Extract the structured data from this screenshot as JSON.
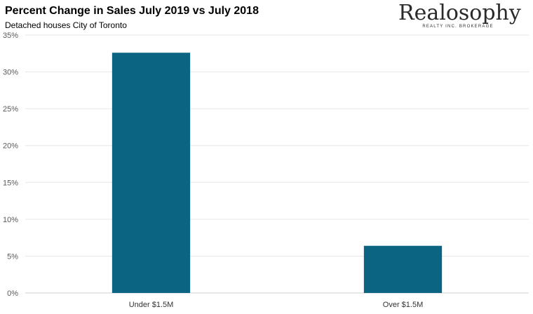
{
  "chart_data": {
    "type": "bar",
    "title": "Percent Change in Sales July 2019 vs July 2018",
    "subtitle": "Detached houses City of Toronto",
    "categories": [
      "Under $1.5M",
      "Over $1.5M"
    ],
    "values": [
      32.6,
      6.4
    ],
    "ylim": [
      0,
      35
    ],
    "yticks": [
      0,
      5,
      10,
      15,
      20,
      25,
      30,
      35
    ],
    "ytick_labels": [
      "0%",
      "5%",
      "10%",
      "15%",
      "20%",
      "25%",
      "30%",
      "35%"
    ],
    "grid": true,
    "legend": "none",
    "bar_color": "#0b6482",
    "grid_color": "#e6e6e6",
    "axis_color": "#d0d0d0"
  },
  "logo": {
    "wordmark": "Realosophy",
    "tagline": "REALTY INC. BROKERAGE"
  }
}
